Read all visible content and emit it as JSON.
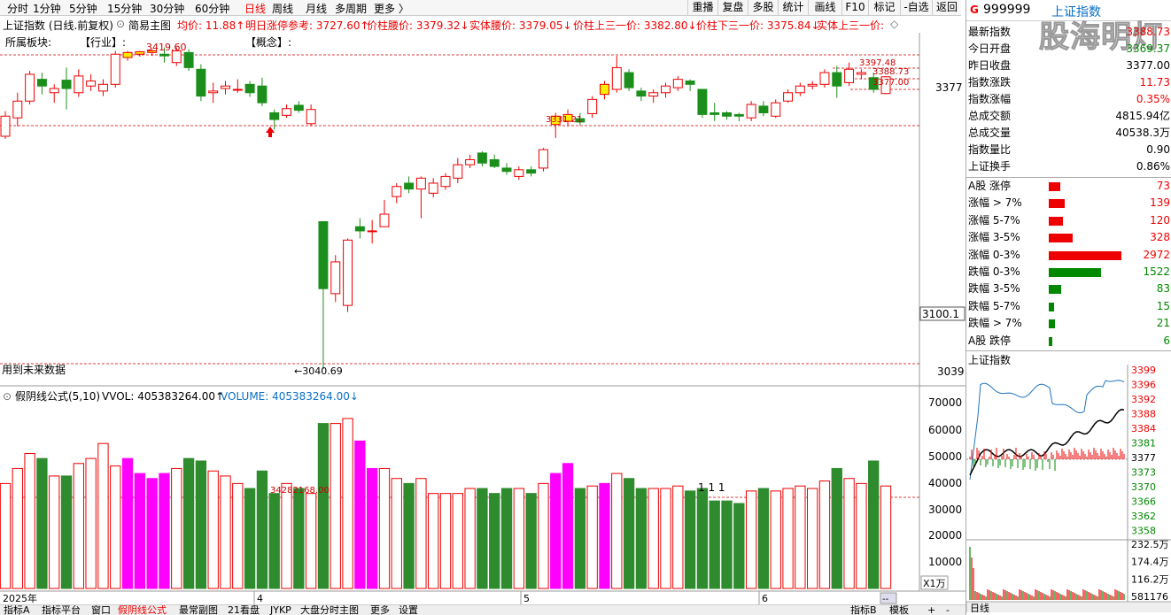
{
  "toolbar": {
    "periods": [
      "分时",
      "1分钟",
      "5分钟",
      "15分钟",
      "30分钟",
      "60分钟",
      "日线",
      "周线",
      "月线",
      "多周期",
      "更多 〉"
    ],
    "active_period": "日线",
    "buttons": [
      "重播",
      "复盘",
      "多股",
      "统计",
      "画线",
      "F10",
      "标记",
      "-自选",
      "返回"
    ]
  },
  "infoline": {
    "name": "上证指数 (日线.前复权)",
    "template": "简易主图",
    "avg": "均价: 11.88↑",
    "limit_ref": "明日涨停参考: 3727.60↑",
    "mid_price": "价柱腰价: 3379.32↓",
    "body_mid": "实体腰价: 3379.05↓",
    "up_third": "价柱上三一价: 3382.80↓",
    "down_third": "价柱下三一价: 3375.84↓",
    "body_up_third": "实体上三一价:"
  },
  "sector_line": {
    "label": "所属板块:",
    "industry": "【行业】:",
    "concept": "【概念】:"
  },
  "price_axis": {
    "labels": [
      "3377",
      "3100.1",
      "3039"
    ]
  },
  "price_annotations": {
    "high_label": "3419.60",
    "right_high": "3397.48",
    "right_mid": "3388.73",
    "right_low": "3377.00",
    "mid_level": "3331.21",
    "low_label": "←3040.69",
    "future_data": "用到未来数据"
  },
  "volume_header": {
    "formula": "假阴线公式(5,10)",
    "vvol": "VVOL: 405383264.00↑",
    "volume": "VOLUME: 405383264.00↓"
  },
  "volume_axis": {
    "labels": [
      "70000",
      "60000",
      "50000",
      "40000",
      "30000",
      "20000",
      "10000"
    ],
    "unit": "X1万"
  },
  "volume_annotations": {
    "ref_line": "34282168.00",
    "markers": "1 1 1"
  },
  "date_axis": {
    "labels": [
      "2025年",
      "4",
      "5",
      "6"
    ],
    "right_btn": "--"
  },
  "bottom_tabs": [
    "指标A",
    "指标平台",
    "窗口",
    "假阴线公式",
    "最常副图",
    "21看盘",
    "JYKP",
    "大盘分时主图",
    "更多",
    "设置",
    "指标B",
    "模板",
    "+",
    "-"
  ],
  "right_panel": {
    "code": "999999",
    "name": "上证指数",
    "logo": "股海明灯",
    "quote": [
      {
        "label": "最新指数",
        "value": "3388.73",
        "color": "#e00"
      },
      {
        "label": "今日开盘",
        "value": "3369.37",
        "color": "#080"
      },
      {
        "label": "昨日收盘",
        "value": "3377.00",
        "color": "#000"
      },
      {
        "label": "指数涨跌",
        "value": "11.73",
        "color": "#e00"
      },
      {
        "label": "指数涨幅",
        "value": "0.35%",
        "color": "#e00"
      },
      {
        "label": "总成交额",
        "value": "4815.94亿",
        "color": "#000"
      },
      {
        "label": "总成交量",
        "value": "40538.3万",
        "color": "#000"
      },
      {
        "label": "指数量比",
        "value": "0.90",
        "color": "#000"
      },
      {
        "label": "上证换手",
        "value": "0.86%",
        "color": "#000"
      }
    ],
    "breadth": [
      {
        "label": "A股 涨停",
        "value": 73,
        "color": "#e00"
      },
      {
        "label": "涨幅 > 7%",
        "value": 139,
        "color": "#e00"
      },
      {
        "label": "涨幅 5-7%",
        "value": 120,
        "color": "#e00"
      },
      {
        "label": "涨幅 3-5%",
        "value": 328,
        "color": "#e00"
      },
      {
        "label": "涨幅 0-3%",
        "value": 2972,
        "color": "#e00"
      },
      {
        "label": "跌幅 0-3%",
        "value": 1522,
        "color": "#080"
      },
      {
        "label": "跌幅 3-5%",
        "value": 83,
        "color": "#080"
      },
      {
        "label": "跌幅 5-7%",
        "value": 15,
        "color": "#080"
      },
      {
        "label": "跌幅 > 7%",
        "value": 21,
        "color": "#080"
      },
      {
        "label": "A股 跌停",
        "value": 6,
        "color": "#080"
      }
    ],
    "mini_title": "上证指数",
    "mini_price_labels": [
      "3399",
      "3396",
      "3392",
      "3388",
      "3384",
      "3381",
      "3377",
      "3373",
      "3370",
      "3366",
      "3362",
      "3358"
    ],
    "mini_vol_labels": [
      "232.5万",
      "174.4万",
      "116.2万",
      "581176"
    ],
    "mini_tab": "日线"
  },
  "chart_data": {
    "type": "candlestick",
    "price_min": 3039,
    "price_max": 3430,
    "vol_max": 74000,
    "candles": [
      {
        "o": 3318,
        "c": 3342,
        "h": 3348,
        "l": 3315,
        "v": 42000
      },
      {
        "o": 3340,
        "c": 3360,
        "h": 3370,
        "l": 3330,
        "v": 48000
      },
      {
        "o": 3360,
        "c": 3392,
        "h": 3396,
        "l": 3356,
        "v": 54000
      },
      {
        "o": 3386,
        "c": 3378,
        "h": 3394,
        "l": 3368,
        "v": 52000,
        "neg": 1
      },
      {
        "o": 3370,
        "c": 3375,
        "h": 3380,
        "l": 3358,
        "v": 45000,
        "neg": 1
      },
      {
        "o": 3385,
        "c": 3375,
        "h": 3400,
        "l": 3350,
        "v": 45000,
        "neg": 1
      },
      {
        "o": 3370,
        "c": 3390,
        "h": 3398,
        "l": 3365,
        "v": 50000
      },
      {
        "o": 3378,
        "c": 3384,
        "h": 3392,
        "l": 3372,
        "v": 52000,
        "neg": 1
      },
      {
        "o": 3372,
        "c": 3380,
        "h": 3386,
        "l": 3366,
        "v": 58000
      },
      {
        "o": 3380,
        "c": 3416,
        "h": 3420,
        "l": 3376,
        "v": 49000
      },
      {
        "o": 3412,
        "c": 3418,
        "h": 3420,
        "l": 3408,
        "v": 52000,
        "fake": 1
      },
      {
        "o": 3416,
        "c": 3419,
        "h": 3420,
        "l": 3413,
        "v": 46000,
        "fake": 1
      },
      {
        "o": 3418,
        "c": 3420,
        "h": 3422,
        "l": 3414,
        "v": 44000,
        "fake": 1
      },
      {
        "o": 3416,
        "c": 3414,
        "h": 3424,
        "l": 3406,
        "v": 46000,
        "fake": 1
      },
      {
        "o": 3406,
        "c": 3420,
        "h": 3424,
        "l": 3402,
        "v": 48000
      },
      {
        "o": 3418,
        "c": 3400,
        "h": 3422,
        "l": 3396,
        "v": 52000,
        "neg": 1
      },
      {
        "o": 3398,
        "c": 3366,
        "h": 3404,
        "l": 3360,
        "v": 51000,
        "neg": 1
      },
      {
        "o": 3370,
        "c": 3372,
        "h": 3382,
        "l": 3358,
        "v": 47000
      },
      {
        "o": 3375,
        "c": 3378,
        "h": 3384,
        "l": 3368,
        "v": 45000,
        "neg": 1
      },
      {
        "o": 3374,
        "c": 3374,
        "h": 3386,
        "l": 3370,
        "v": 42000
      },
      {
        "o": 3380,
        "c": 3370,
        "h": 3384,
        "l": 3365,
        "v": 40000,
        "neg": 1
      },
      {
        "o": 3378,
        "c": 3358,
        "h": 3388,
        "l": 3354,
        "v": 47000,
        "neg": 1
      },
      {
        "o": 3346,
        "c": 3338,
        "h": 3350,
        "l": 3326,
        "v": 38000,
        "neg": 1
      },
      {
        "o": 3343,
        "c": 3351,
        "h": 3356,
        "l": 3340,
        "v": 42000
      },
      {
        "o": 3355,
        "c": 3349,
        "h": 3360,
        "l": 3346,
        "v": 40000,
        "neg": 1
      },
      {
        "o": 3333,
        "c": 3350,
        "h": 3356,
        "l": 3330,
        "v": 38000
      },
      {
        "o": 3216,
        "c": 3136,
        "h": 3216,
        "l": 3040,
        "v": 66000,
        "neg": 1
      },
      {
        "o": 3130,
        "c": 3168,
        "h": 3176,
        "l": 3120,
        "v": 66000
      },
      {
        "o": 3116,
        "c": 3194,
        "h": 3196,
        "l": 3108,
        "v": 68000
      },
      {
        "o": 3210,
        "c": 3205,
        "h": 3220,
        "l": 3196,
        "v": 59000,
        "fake": 1
      },
      {
        "o": 3205,
        "c": 3205,
        "h": 3218,
        "l": 3190,
        "v": 48000,
        "fake": 1
      },
      {
        "o": 3210,
        "c": 3225,
        "h": 3242,
        "l": 3210,
        "v": 48000
      },
      {
        "o": 3246,
        "c": 3258,
        "h": 3262,
        "l": 3238,
        "v": 44000
      },
      {
        "o": 3262,
        "c": 3255,
        "h": 3270,
        "l": 3250,
        "v": 42000,
        "neg": 1
      },
      {
        "o": 3255,
        "c": 3268,
        "h": 3270,
        "l": 3220,
        "v": 44000
      },
      {
        "o": 3250,
        "c": 3262,
        "h": 3268,
        "l": 3245,
        "v": 38000
      },
      {
        "o": 3258,
        "c": 3270,
        "h": 3274,
        "l": 3254,
        "v": 38000
      },
      {
        "o": 3268,
        "c": 3284,
        "h": 3292,
        "l": 3262,
        "v": 38000
      },
      {
        "o": 3284,
        "c": 3290,
        "h": 3296,
        "l": 3280,
        "v": 40000
      },
      {
        "o": 3298,
        "c": 3286,
        "h": 3300,
        "l": 3282,
        "v": 40000,
        "neg": 1
      },
      {
        "o": 3290,
        "c": 3282,
        "h": 3296,
        "l": 3280,
        "v": 38000,
        "neg": 1
      },
      {
        "o": 3280,
        "c": 3276,
        "h": 3286,
        "l": 3272,
        "v": 40000,
        "neg": 1
      },
      {
        "o": 3270,
        "c": 3278,
        "h": 3282,
        "l": 3266,
        "v": 40000
      },
      {
        "o": 3278,
        "c": 3274,
        "h": 3282,
        "l": 3270,
        "v": 38000,
        "neg": 1
      },
      {
        "o": 3280,
        "c": 3302,
        "h": 3304,
        "l": 3276,
        "v": 42000
      },
      {
        "o": 3332,
        "c": 3342,
        "h": 3346,
        "l": 3316,
        "v": 46000,
        "fake": 1
      },
      {
        "o": 3336,
        "c": 3344,
        "h": 3350,
        "l": 3330,
        "v": 50000,
        "fake": 1
      },
      {
        "o": 3339,
        "c": 3335,
        "h": 3346,
        "l": 3331,
        "v": 40000,
        "neg": 1
      },
      {
        "o": 3345,
        "c": 3362,
        "h": 3366,
        "l": 3340,
        "v": 41000
      },
      {
        "o": 3368,
        "c": 3380,
        "h": 3384,
        "l": 3362,
        "v": 42000,
        "fake": 1
      },
      {
        "o": 3374,
        "c": 3400,
        "h": 3414,
        "l": 3370,
        "v": 46000
      },
      {
        "o": 3394,
        "c": 3376,
        "h": 3398,
        "l": 3372,
        "v": 44000,
        "neg": 1
      },
      {
        "o": 3372,
        "c": 3366,
        "h": 3376,
        "l": 3360,
        "v": 40000,
        "neg": 1
      },
      {
        "o": 3366,
        "c": 3370,
        "h": 3374,
        "l": 3358,
        "v": 40000
      },
      {
        "o": 3370,
        "c": 3378,
        "h": 3382,
        "l": 3364,
        "v": 40000
      },
      {
        "o": 3376,
        "c": 3386,
        "h": 3390,
        "l": 3372,
        "v": 41000
      },
      {
        "o": 3384,
        "c": 3380,
        "h": 3386,
        "l": 3372,
        "v": 39000,
        "neg": 1
      },
      {
        "o": 3374,
        "c": 3344,
        "h": 3374,
        "l": 3340,
        "v": 40000,
        "neg": 1
      },
      {
        "o": 3346,
        "c": 3344,
        "h": 3358,
        "l": 3336,
        "v": 35000,
        "neg": 1
      },
      {
        "o": 3346,
        "c": 3342,
        "h": 3348,
        "l": 3338,
        "v": 35000,
        "neg": 1
      },
      {
        "o": 3344,
        "c": 3342,
        "h": 3346,
        "l": 3336,
        "v": 34000,
        "neg": 1
      },
      {
        "o": 3340,
        "c": 3356,
        "h": 3360,
        "l": 3336,
        "v": 39000
      },
      {
        "o": 3354,
        "c": 3346,
        "h": 3360,
        "l": 3342,
        "v": 40000,
        "neg": 1
      },
      {
        "o": 3342,
        "c": 3358,
        "h": 3362,
        "l": 3340,
        "v": 39000
      },
      {
        "o": 3360,
        "c": 3370,
        "h": 3374,
        "l": 3358,
        "v": 40000
      },
      {
        "o": 3370,
        "c": 3378,
        "h": 3382,
        "l": 3366,
        "v": 41000
      },
      {
        "o": 3378,
        "c": 3380,
        "h": 3384,
        "l": 3374,
        "v": 40000
      },
      {
        "o": 3380,
        "c": 3394,
        "h": 3398,
        "l": 3376,
        "v": 43000
      },
      {
        "o": 3394,
        "c": 3378,
        "h": 3402,
        "l": 3364,
        "v": 48000,
        "neg": 1
      },
      {
        "o": 3382,
        "c": 3398,
        "h": 3406,
        "l": 3378,
        "v": 44000
      },
      {
        "o": 3392,
        "c": 3394,
        "h": 3398,
        "l": 3386,
        "v": 42000
      },
      {
        "o": 3388,
        "c": 3374,
        "h": 3394,
        "l": 3370,
        "v": 51000,
        "neg": 1
      },
      {
        "o": 3369,
        "c": 3389,
        "h": 3390,
        "l": 3368,
        "v": 41000
      }
    ]
  }
}
